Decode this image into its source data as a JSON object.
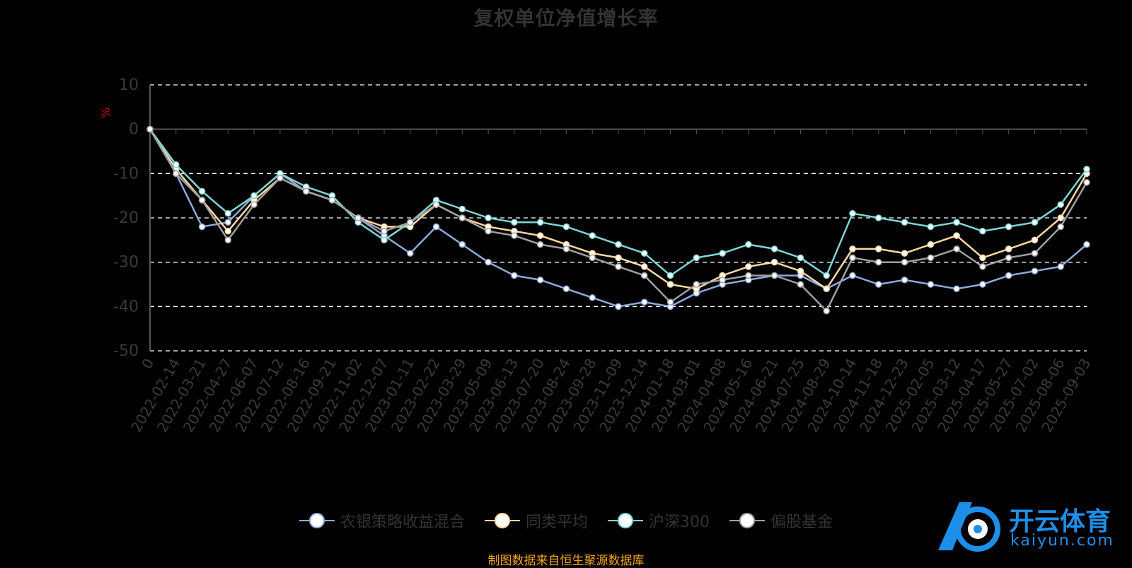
{
  "title": "复权单位净值增长率",
  "source_note": "制图数据来自恒生聚源数据库",
  "logo": {
    "cn": "开云体育",
    "en": "kaiyun.com"
  },
  "colors": {
    "series1": "#8faadc",
    "series2": "#ffd8a0",
    "series3": "#7fd6d6",
    "series4": "#a0a0a0",
    "grid": "#ffffff",
    "axis": "#555555",
    "label": "#3a3a3a"
  },
  "chart_data": {
    "type": "line",
    "ylabel": "%",
    "ylim": [
      -50,
      10
    ],
    "yticks": [
      10,
      0,
      -10,
      -20,
      -30,
      -40,
      -50
    ],
    "grid": "dashed horizontal",
    "legend_position": "bottom",
    "categories": [
      "0",
      "2022-02-14",
      "2022-03-21",
      "2022-04-27",
      "2022-06-07",
      "2022-07-12",
      "2022-08-16",
      "2022-09-21",
      "2022-11-02",
      "2022-12-07",
      "2023-01-11",
      "2023-02-22",
      "2023-03-29",
      "2023-05-09",
      "2023-06-13",
      "2023-07-20",
      "2023-08-24",
      "2023-09-28",
      "2023-11-09",
      "2023-12-14",
      "2024-01-18",
      "2024-03-01",
      "2024-04-08",
      "2024-05-16",
      "2024-06-21",
      "2024-07-25",
      "2024-08-29",
      "2024-10-14",
      "2024-11-18",
      "2024-12-23",
      "2025-02-05",
      "2025-03-12",
      "2025-04-17",
      "2025-05-27",
      "2025-07-02",
      "2025-08-06",
      "2025-09-03"
    ],
    "series": [
      {
        "name": "农银策略收益混合",
        "values": [
          0,
          -10,
          -22,
          -21,
          -15,
          -10,
          -14,
          -16,
          -20,
          -24,
          -28,
          -22,
          -26,
          -30,
          -33,
          -34,
          -36,
          -38,
          -40,
          -39,
          -40,
          -37,
          -35,
          -34,
          -33,
          -33,
          -36,
          -33,
          -35,
          -34,
          -35,
          -36,
          -35,
          -33,
          -32,
          -31,
          -26
        ]
      },
      {
        "name": "同类平均",
        "values": [
          0,
          -9,
          -16,
          -23,
          -16,
          -11,
          -14,
          -16,
          -20,
          -22,
          -22,
          -17,
          -20,
          -22,
          -23,
          -24,
          -26,
          -28,
          -29,
          -31,
          -35,
          -36,
          -33,
          -31,
          -30,
          -32,
          -36,
          -27,
          -27,
          -28,
          -26,
          -24,
          -29,
          -27,
          -25,
          -20,
          -10
        ]
      },
      {
        "name": "沪深300",
        "values": [
          0,
          -8,
          -14,
          -19,
          -15,
          -10,
          -13,
          -15,
          -21,
          -25,
          -21,
          -16,
          -18,
          -20,
          -21,
          -21,
          -22,
          -24,
          -26,
          -28,
          -33,
          -29,
          -28,
          -26,
          -27,
          -29,
          -33,
          -19,
          -20,
          -21,
          -22,
          -21,
          -23,
          -22,
          -21,
          -17,
          -9
        ]
      },
      {
        "name": "偏股基金",
        "values": [
          0,
          -10,
          -16,
          -25,
          -17,
          -11,
          -14,
          -16,
          -20,
          -23,
          -21,
          -17,
          -20,
          -23,
          -24,
          -26,
          -27,
          -29,
          -31,
          -33,
          -39,
          -35,
          -34,
          -33,
          -33,
          -35,
          -41,
          -29,
          -30,
          -30,
          -29,
          -27,
          -31,
          -29,
          -28,
          -22,
          -12
        ]
      }
    ]
  }
}
